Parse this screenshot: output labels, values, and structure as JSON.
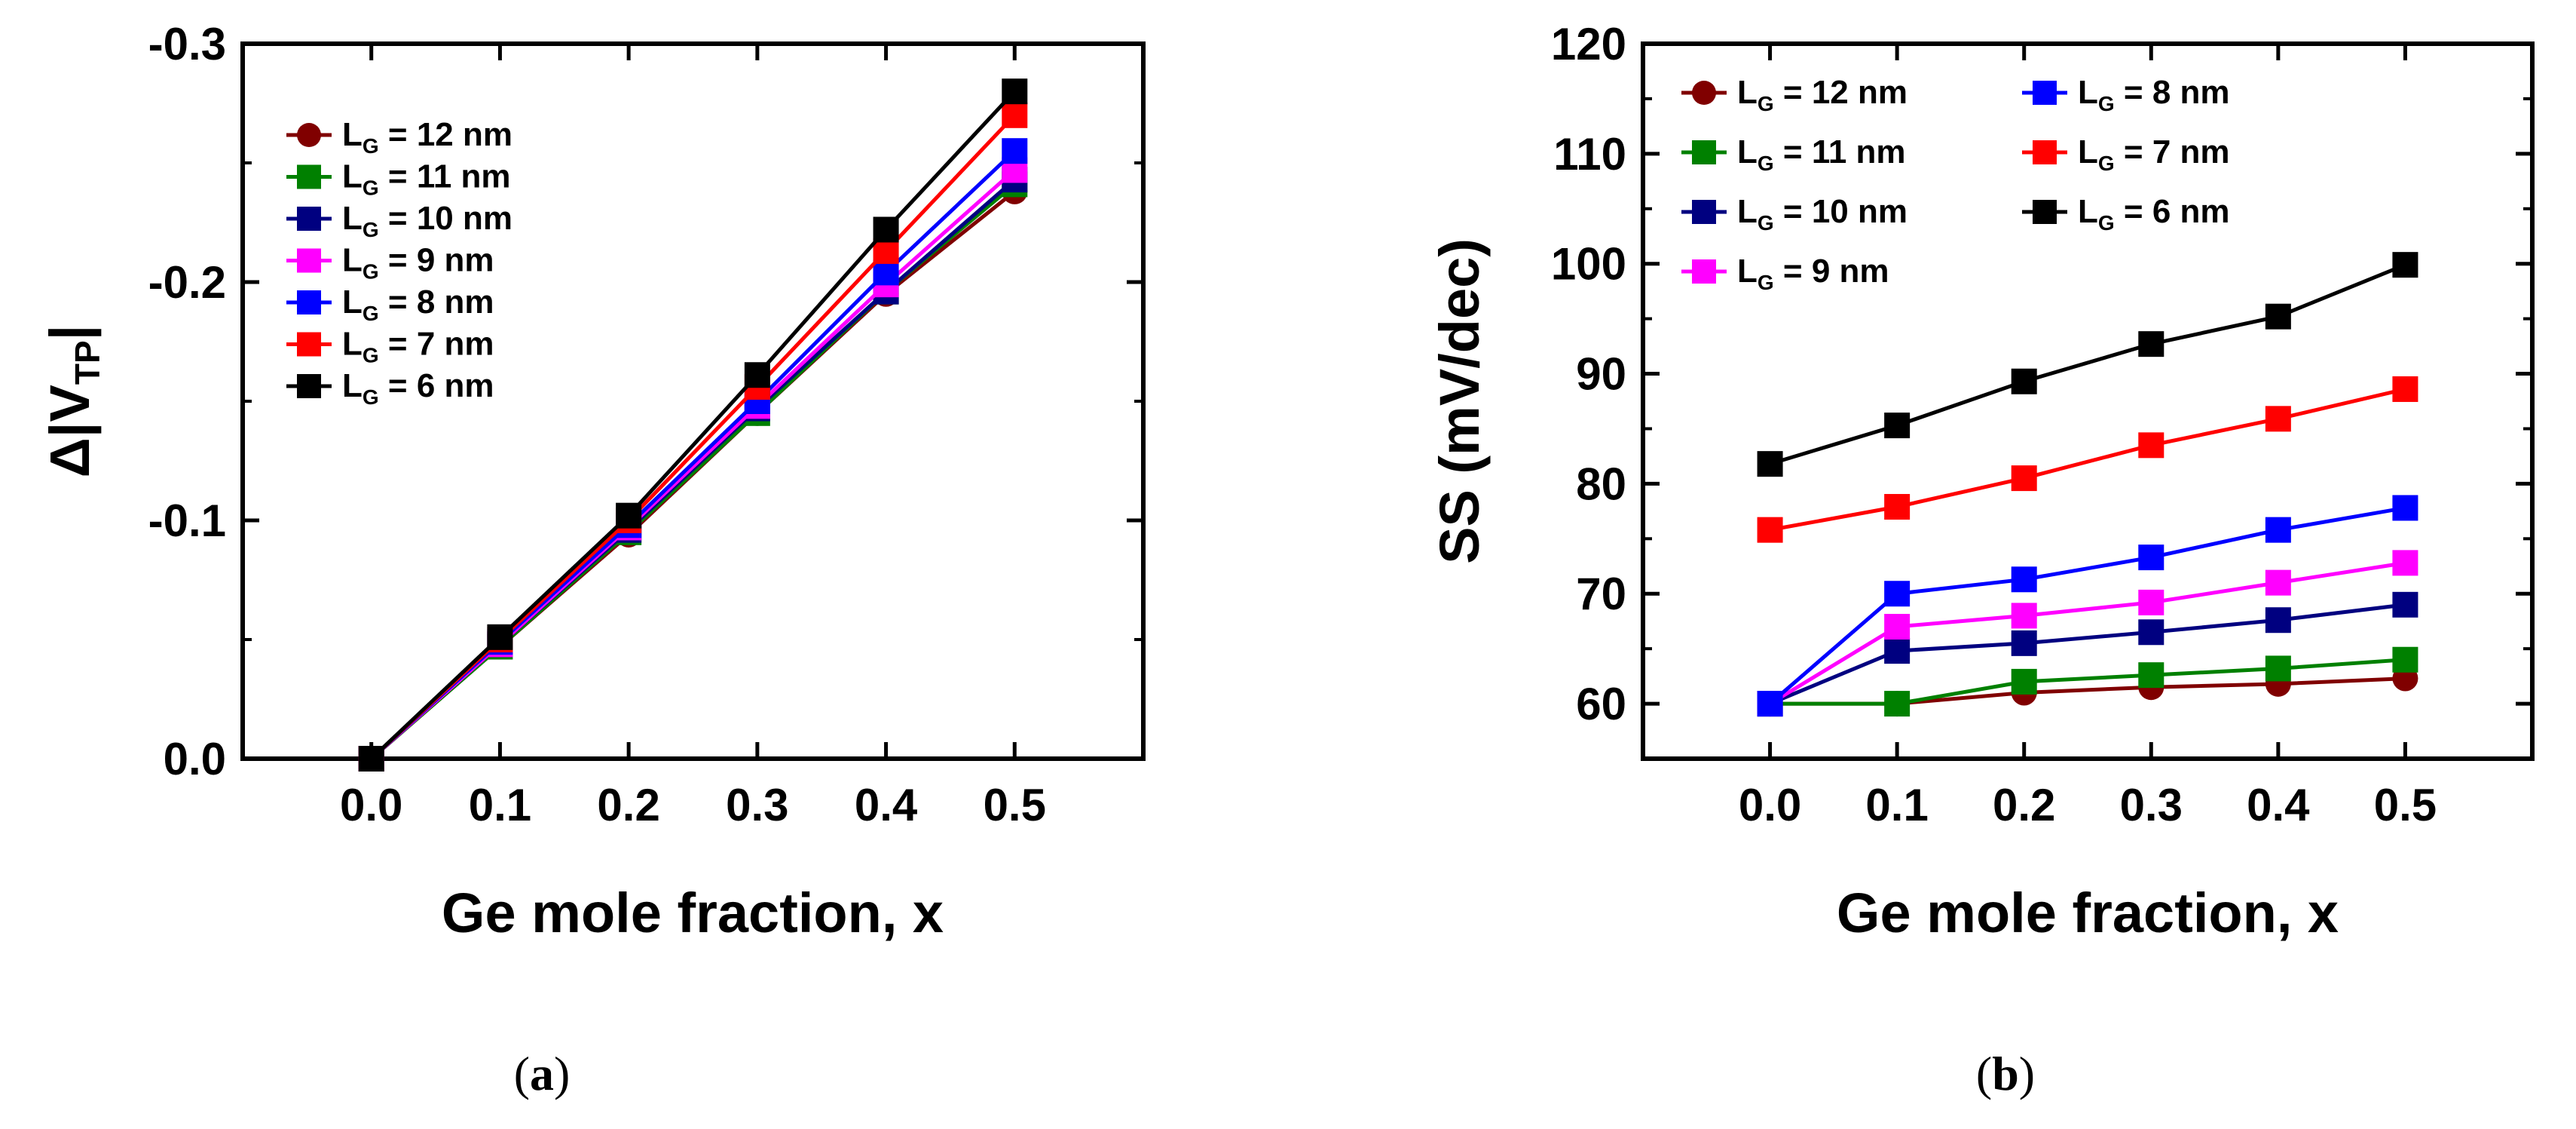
{
  "chart_data": [
    {
      "type": "line",
      "panel": "a",
      "caption": {
        "open": "(",
        "letter": "a",
        "close": ")"
      },
      "xlabel": "Ge mole fraction, x",
      "ylabel": {
        "prefix": "Δ|V",
        "subscript": "TP",
        "suffix": "|"
      },
      "xlim": [
        -0.1,
        0.6
      ],
      "ylim": [
        0.0,
        -0.3
      ],
      "xticks": [
        "0.0",
        "0.1",
        "0.2",
        "0.3",
        "0.4",
        "0.5"
      ],
      "yticks": [
        "0.0",
        "-0.1",
        "-0.2",
        "-0.3"
      ],
      "x": [
        0.0,
        0.1,
        0.2,
        0.3,
        0.4,
        0.5
      ],
      "legend_position": "upper-left",
      "series": [
        {
          "name": "L_G = 12 nm",
          "label": {
            "main": "L",
            "sub": "G",
            "rest": " = 12 nm"
          },
          "color": "#800000",
          "marker": "circle",
          "values": [
            0.0,
            -0.047,
            -0.094,
            -0.145,
            -0.195,
            -0.238
          ]
        },
        {
          "name": "L_G = 11 nm",
          "label": {
            "main": "L",
            "sub": "G",
            "rest": " = 11 nm"
          },
          "color": "#008000",
          "marker": "square",
          "values": [
            0.0,
            -0.047,
            -0.095,
            -0.145,
            -0.196,
            -0.241
          ]
        },
        {
          "name": "L_G = 10 nm",
          "label": {
            "main": "L",
            "sub": "G",
            "rest": " = 10 nm"
          },
          "color": "#000080",
          "marker": "square",
          "values": [
            0.0,
            -0.048,
            -0.096,
            -0.147,
            -0.196,
            -0.243
          ]
        },
        {
          "name": "L_G = 9 nm",
          "label": {
            "main": "L",
            "sub": "G",
            "rest": " = 9 nm"
          },
          "color": "#ff00ff",
          "marker": "square",
          "values": [
            0.0,
            -0.048,
            -0.097,
            -0.148,
            -0.199,
            -0.247
          ]
        },
        {
          "name": "L_G = 8 nm",
          "label": {
            "main": "L",
            "sub": "G",
            "rest": " = 8 nm"
          },
          "color": "#0000ff",
          "marker": "square",
          "values": [
            0.0,
            -0.049,
            -0.098,
            -0.15,
            -0.204,
            -0.255
          ]
        },
        {
          "name": "L_G = 7 nm",
          "label": {
            "main": "L",
            "sub": "G",
            "rest": " = 7 nm"
          },
          "color": "#ff0000",
          "marker": "square",
          "values": [
            0.0,
            -0.05,
            -0.1,
            -0.156,
            -0.213,
            -0.27
          ]
        },
        {
          "name": "L_G = 6 nm",
          "label": {
            "main": "L",
            "sub": "G",
            "rest": " = 6 nm"
          },
          "color": "#000000",
          "marker": "square",
          "values": [
            0.0,
            -0.051,
            -0.102,
            -0.161,
            -0.222,
            -0.28
          ]
        }
      ]
    },
    {
      "type": "line",
      "panel": "b",
      "caption": {
        "open": "(",
        "letter": "b",
        "close": ")"
      },
      "xlabel": "Ge mole fraction, x",
      "ylabel": "SS (mV/dec)",
      "xlim": [
        -0.1,
        0.6
      ],
      "ylim": [
        55,
        120
      ],
      "xticks": [
        "0.0",
        "0.1",
        "0.2",
        "0.3",
        "0.4",
        "0.5"
      ],
      "yticks": [
        "60",
        "70",
        "80",
        "90",
        "100",
        "110",
        "120"
      ],
      "x": [
        0.0,
        0.1,
        0.2,
        0.3,
        0.4,
        0.5
      ],
      "legend_position": "upper-left, two columns",
      "series": [
        {
          "name": "L_G = 12 nm",
          "label": {
            "main": "L",
            "sub": "G",
            "rest": " = 12 nm"
          },
          "color": "#800000",
          "marker": "circle",
          "values": [
            60.0,
            60.0,
            61.0,
            61.5,
            61.8,
            62.3
          ]
        },
        {
          "name": "L_G = 11 nm",
          "label": {
            "main": "L",
            "sub": "G",
            "rest": " = 11 nm"
          },
          "color": "#008000",
          "marker": "square",
          "values": [
            60.0,
            60.0,
            62.0,
            62.6,
            63.2,
            64.0
          ]
        },
        {
          "name": "L_G = 10 nm",
          "label": {
            "main": "L",
            "sub": "G",
            "rest": " = 10 nm"
          },
          "color": "#000080",
          "marker": "square",
          "values": [
            60.0,
            64.8,
            65.5,
            66.5,
            67.6,
            69.0
          ]
        },
        {
          "name": "L_G = 9 nm",
          "label": {
            "main": "L",
            "sub": "G",
            "rest": " = 9 nm"
          },
          "color": "#ff00ff",
          "marker": "square",
          "values": [
            60.0,
            67.0,
            68.0,
            69.2,
            71.0,
            72.8
          ]
        },
        {
          "name": "L_G = 8 nm",
          "label": {
            "main": "L",
            "sub": "G",
            "rest": " = 8 nm"
          },
          "color": "#0000ff",
          "marker": "square",
          "values": [
            60.0,
            70.0,
            71.3,
            73.3,
            75.8,
            77.8
          ]
        },
        {
          "name": "L_G = 7 nm",
          "label": {
            "main": "L",
            "sub": "G",
            "rest": " = 7 nm"
          },
          "color": "#ff0000",
          "marker": "square",
          "values": [
            75.8,
            77.9,
            80.5,
            83.5,
            85.9,
            88.6
          ]
        },
        {
          "name": "L_G = 6 nm",
          "label": {
            "main": "L",
            "sub": "G",
            "rest": " = 6 nm"
          },
          "color": "#000000",
          "marker": "square",
          "values": [
            81.8,
            85.3,
            89.3,
            92.7,
            95.2,
            99.9
          ]
        }
      ]
    }
  ]
}
